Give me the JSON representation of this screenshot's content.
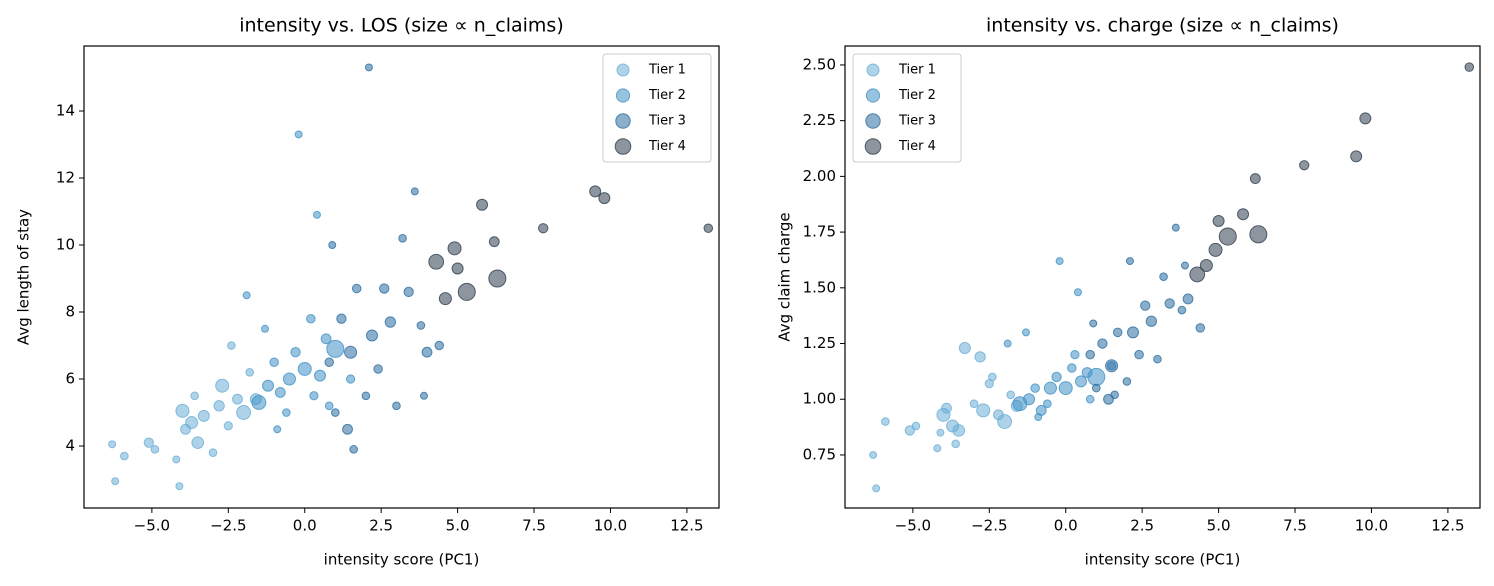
{
  "chart_data": [
    {
      "type": "scatter",
      "title": "intensity vs. LOS (size ∝ n_claims)",
      "xlabel": "intensity score (PC1)",
      "ylabel": "Avg length of stay",
      "xlim": [
        -7.22,
        13.55
      ],
      "ylim": [
        2.15,
        15.94
      ],
      "xticks": [
        {
          "value": -5,
          "label": "−5.0"
        },
        {
          "value": -2.5,
          "label": "−2.5"
        },
        {
          "value": 0,
          "label": "0.0"
        },
        2.5,
        {
          "value": 5,
          "label": "5.0"
        },
        7.5,
        {
          "value": 10,
          "label": "10.0"
        },
        12.5
      ],
      "yticks": [
        4,
        6,
        8,
        10,
        12,
        14
      ],
      "legend": "upper right",
      "series": [
        {
          "name": "Tier 1",
          "color": "#6baed6",
          "x": [
            -6.3,
            -6.2,
            -5.9,
            -5.1,
            -4.9,
            -4.2,
            -4.1,
            -4.0,
            -3.9,
            -3.7,
            -3.5,
            -3.3,
            -3.0,
            -2.8,
            -2.7,
            -2.5,
            -2.2,
            -2.0,
            -1.8,
            -1.6,
            -2.4,
            -3.6
          ],
          "values": [
            4.05,
            2.95,
            3.7,
            4.1,
            3.9,
            3.6,
            2.8,
            5.05,
            4.5,
            4.7,
            4.1,
            4.9,
            3.8,
            5.2,
            5.8,
            4.6,
            5.4,
            5.0,
            6.2,
            5.4,
            7.0,
            5.5
          ],
          "sizes": [
            10,
            10,
            12,
            18,
            12,
            10,
            10,
            35,
            20,
            30,
            28,
            25,
            12,
            22,
            35,
            14,
            20,
            40,
            12,
            25,
            12,
            12
          ]
        },
        {
          "name": "Tier 2",
          "color": "#4292c6",
          "x": [
            -1.5,
            -1.2,
            -1.0,
            -0.8,
            -0.5,
            -0.3,
            -0.2,
            0,
            0.2,
            0.4,
            0.5,
            0.7,
            -1.3,
            -0.6,
            0.3,
            1.0,
            -1.9,
            -0.9,
            0.8,
            1.5
          ],
          "values": [
            5.3,
            5.8,
            6.5,
            5.6,
            6.0,
            6.8,
            13.3,
            6.3,
            7.8,
            10.9,
            6.1,
            7.2,
            7.5,
            5.0,
            5.5,
            6.9,
            8.5,
            4.5,
            5.2,
            6.0
          ],
          "sizes": [
            40,
            25,
            15,
            20,
            30,
            18,
            10,
            35,
            15,
            10,
            25,
            20,
            10,
            12,
            14,
            60,
            10,
            10,
            12,
            14
          ]
        },
        {
          "name": "Tier 3",
          "color": "#2b6ea0",
          "x": [
            0.8,
            1.0,
            1.2,
            1.4,
            1.5,
            1.7,
            2.0,
            2.1,
            2.2,
            2.4,
            2.6,
            2.8,
            3.0,
            3.2,
            3.4,
            3.6,
            3.8,
            4.0,
            4.4,
            1.6,
            0.9,
            3.9
          ],
          "values": [
            6.5,
            5.0,
            7.8,
            4.5,
            6.8,
            8.7,
            5.5,
            15.3,
            7.3,
            6.3,
            8.7,
            7.7,
            5.2,
            10.2,
            8.6,
            11.6,
            7.6,
            6.8,
            7.0,
            3.9,
            10.0,
            5.5
          ],
          "sizes": [
            15,
            12,
            18,
            20,
            30,
            15,
            12,
            10,
            25,
            15,
            18,
            22,
            12,
            12,
            18,
            10,
            12,
            20,
            15,
            12,
            10,
            10
          ]
        },
        {
          "name": "Tier 4",
          "color": "#2f3f4f",
          "x": [
            4.3,
            4.6,
            4.9,
            5.0,
            5.3,
            5.8,
            6.2,
            6.3,
            7.8,
            9.5,
            9.8,
            13.2
          ],
          "values": [
            9.5,
            8.4,
            9.9,
            9.3,
            8.6,
            11.2,
            10.1,
            9.0,
            10.5,
            11.6,
            11.4,
            10.5
          ],
          "sizes": [
            45,
            30,
            35,
            25,
            60,
            25,
            20,
            60,
            18,
            25,
            25,
            15
          ]
        }
      ]
    },
    {
      "type": "scatter",
      "title": "intensity vs. charge (size ∝ n_claims)",
      "xlabel": "intensity score (PC1)",
      "ylabel": "Avg claim charge",
      "xlim": [
        -7.22,
        13.55
      ],
      "ylim": [
        0.512,
        2.585
      ],
      "xticks": [
        {
          "value": -5,
          "label": "−5.0"
        },
        {
          "value": -2.5,
          "label": "−2.5"
        },
        {
          "value": 0,
          "label": "0.0"
        },
        2.5,
        {
          "value": 5,
          "label": "5.0"
        },
        7.5,
        {
          "value": 10,
          "label": "10.0"
        },
        12.5
      ],
      "yticks": [
        0.75,
        {
          "value": 1,
          "label": "1.00"
        },
        1.25,
        {
          "value": 1.5,
          "label": "1.50"
        },
        1.75,
        {
          "value": 2,
          "label": "2.00"
        },
        2.25,
        {
          "value": 2.5,
          "label": "2.50"
        }
      ],
      "legend": "upper left",
      "series": [
        {
          "name": "Tier 1",
          "color": "#6baed6",
          "x": [
            -6.3,
            -6.2,
            -5.9,
            -5.1,
            -4.9,
            -4.2,
            -4.1,
            -4.0,
            -3.9,
            -3.7,
            -3.5,
            -3.3,
            -3.0,
            -2.8,
            -2.7,
            -2.5,
            -2.2,
            -2.0,
            -1.8,
            -1.6,
            -2.4,
            -3.6
          ],
          "values": [
            0.75,
            0.6,
            0.9,
            0.86,
            0.88,
            0.78,
            0.85,
            0.93,
            0.96,
            0.88,
            0.86,
            1.23,
            0.98,
            1.19,
            0.95,
            1.07,
            0.93,
            0.9,
            1.02,
            0.97,
            1.1,
            0.8
          ],
          "sizes": [
            10,
            10,
            12,
            18,
            12,
            10,
            10,
            35,
            20,
            30,
            28,
            25,
            12,
            22,
            35,
            14,
            20,
            40,
            12,
            25,
            12,
            12
          ]
        },
        {
          "name": "Tier 2",
          "color": "#4292c6",
          "x": [
            -1.5,
            -1.2,
            -1.0,
            -0.8,
            -0.5,
            -0.3,
            -0.2,
            0,
            0.2,
            0.4,
            0.5,
            0.7,
            -1.3,
            -0.6,
            0.3,
            1.0,
            -1.9,
            -0.9,
            0.8,
            1.5
          ],
          "values": [
            0.98,
            1.0,
            1.05,
            0.95,
            1.05,
            1.1,
            1.62,
            1.05,
            1.14,
            1.48,
            1.08,
            1.12,
            1.3,
            0.98,
            1.2,
            1.1,
            1.25,
            0.92,
            1.0,
            1.15
          ],
          "sizes": [
            40,
            25,
            15,
            20,
            30,
            18,
            10,
            35,
            15,
            10,
            25,
            20,
            10,
            12,
            14,
            60,
            10,
            10,
            12,
            14
          ]
        },
        {
          "name": "Tier 3",
          "color": "#2b6ea0",
          "x": [
            0.8,
            1.0,
            1.2,
            1.4,
            1.5,
            1.7,
            2.0,
            2.1,
            2.2,
            2.4,
            2.6,
            2.8,
            3.0,
            3.2,
            3.4,
            3.6,
            3.8,
            4.0,
            4.4,
            1.6,
            0.9,
            3.9
          ],
          "values": [
            1.2,
            1.05,
            1.25,
            1.0,
            1.15,
            1.3,
            1.08,
            1.62,
            1.3,
            1.2,
            1.42,
            1.35,
            1.18,
            1.55,
            1.43,
            1.77,
            1.4,
            1.45,
            1.32,
            1.02,
            1.34,
            1.6
          ],
          "sizes": [
            15,
            12,
            18,
            20,
            30,
            15,
            12,
            10,
            25,
            15,
            18,
            22,
            12,
            12,
            18,
            10,
            12,
            20,
            15,
            12,
            10,
            10
          ]
        },
        {
          "name": "Tier 4",
          "color": "#2f3f4f",
          "x": [
            4.3,
            4.6,
            4.9,
            5.0,
            5.3,
            5.8,
            6.2,
            6.3,
            7.8,
            9.5,
            9.8,
            13.2
          ],
          "values": [
            1.56,
            1.6,
            1.67,
            1.8,
            1.73,
            1.83,
            1.99,
            1.74,
            2.05,
            2.09,
            2.26,
            2.49
          ],
          "sizes": [
            45,
            30,
            35,
            25,
            60,
            25,
            20,
            60,
            18,
            25,
            25,
            15
          ]
        }
      ]
    }
  ]
}
